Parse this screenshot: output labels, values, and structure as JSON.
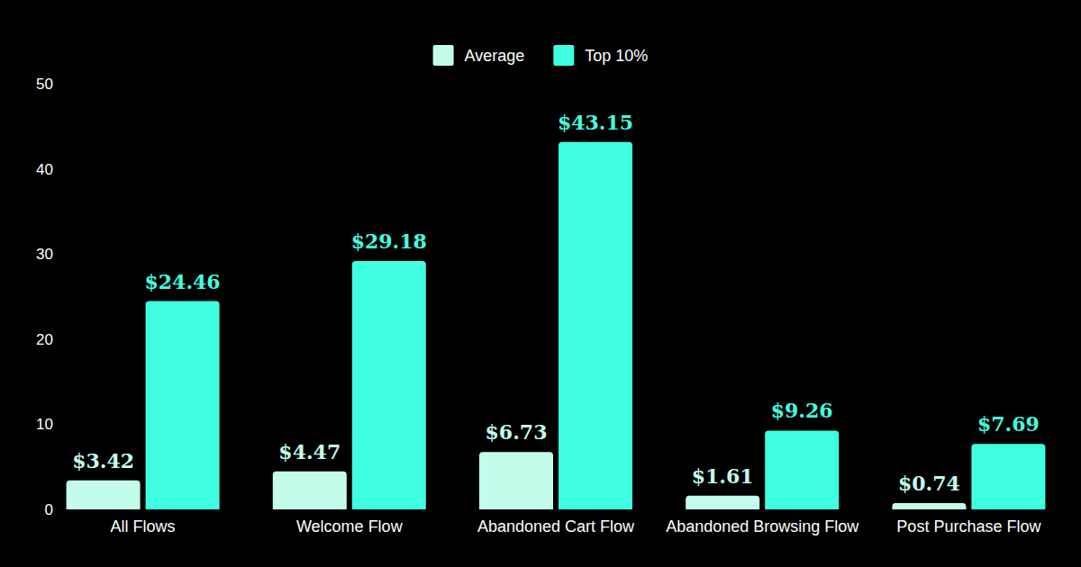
{
  "chart_data": {
    "type": "bar",
    "categories": [
      "All Flows",
      "Welcome Flow",
      "Abandoned Cart Flow",
      "Abandoned Browsing Flow",
      "Post Purchase Flow"
    ],
    "series": [
      {
        "name": "Average",
        "color": "#c4fcec",
        "values": [
          3.42,
          4.47,
          6.73,
          1.61,
          0.74
        ],
        "value_labels": [
          "$3.42",
          "$4.47",
          "$6.73",
          "$1.61",
          "$0.74"
        ]
      },
      {
        "name": "Top 10%",
        "color": "#40ffe0",
        "values": [
          24.46,
          29.18,
          43.15,
          9.26,
          7.69
        ],
        "value_labels": [
          "$24.46",
          "$29.18",
          "$43.15",
          "$9.26",
          "$7.69"
        ]
      }
    ],
    "ylim": [
      0,
      50
    ],
    "yticks": [
      0,
      10,
      20,
      30,
      40,
      50
    ],
    "grid": false,
    "legend": "top",
    "data_labels": true
  }
}
